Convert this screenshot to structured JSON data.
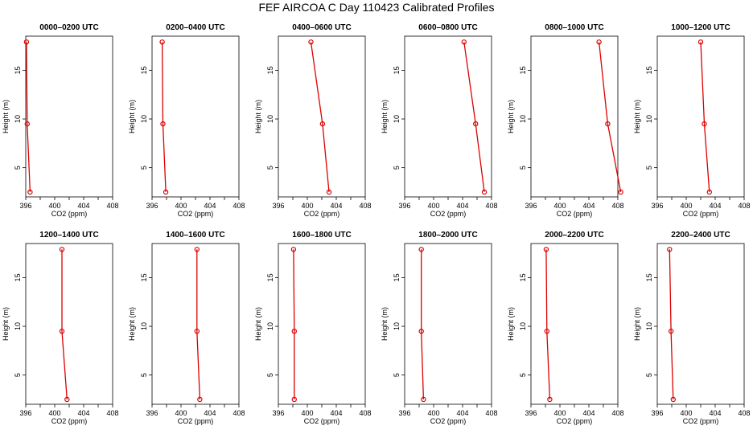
{
  "title": "FEF AIRCOA C  Day 110423  Calibrated Profiles",
  "colors": {
    "profile": "#dd0000",
    "axes": "#000000"
  },
  "chart_data": [
    {
      "type": "line",
      "title": "0000–0200 UTC",
      "xlabel": "CO2 (ppm)",
      "ylabel": "Height (m)",
      "xlim": [
        396,
        408
      ],
      "ylim": [
        2,
        18.5
      ],
      "xticks": [
        396,
        400,
        404,
        408
      ],
      "yticks": [
        5,
        10,
        15
      ],
      "grid": false,
      "series": [
        {
          "x": [
            396.6,
            396.2,
            396.1
          ],
          "y": [
            2.5,
            9.5,
            17.9
          ]
        }
      ]
    },
    {
      "type": "line",
      "title": "0200–0400 UTC",
      "xlabel": "CO2 (ppm)",
      "ylabel": "Height (m)",
      "xlim": [
        396,
        408
      ],
      "ylim": [
        2,
        18.5
      ],
      "xticks": [
        396,
        400,
        404,
        408
      ],
      "yticks": [
        5,
        10,
        15
      ],
      "grid": false,
      "series": [
        {
          "x": [
            397.9,
            397.5,
            397.4
          ],
          "y": [
            2.5,
            9.5,
            17.9
          ]
        }
      ]
    },
    {
      "type": "line",
      "title": "0400–0600 UTC",
      "xlabel": "CO2 (ppm)",
      "ylabel": "Height (m)",
      "xlim": [
        396,
        408
      ],
      "ylim": [
        2,
        18.5
      ],
      "xticks": [
        396,
        400,
        404,
        408
      ],
      "yticks": [
        5,
        10,
        15
      ],
      "grid": false,
      "series": [
        {
          "x": [
            403.0,
            402.1,
            400.5
          ],
          "y": [
            2.5,
            9.5,
            17.9
          ]
        }
      ]
    },
    {
      "type": "line",
      "title": "0600–0800 UTC",
      "xlabel": "CO2 (ppm)",
      "ylabel": "Height (m)",
      "xlim": [
        396,
        408
      ],
      "ylim": [
        2,
        18.5
      ],
      "xticks": [
        396,
        400,
        404,
        408
      ],
      "yticks": [
        5,
        10,
        15
      ],
      "grid": false,
      "series": [
        {
          "x": [
            407.0,
            405.8,
            404.2
          ],
          "y": [
            2.5,
            9.5,
            17.9
          ]
        }
      ]
    },
    {
      "type": "line",
      "title": "0800–1000 UTC",
      "xlabel": "CO2 (ppm)",
      "ylabel": "Height (m)",
      "xlim": [
        396,
        408
      ],
      "ylim": [
        2,
        18.5
      ],
      "xticks": [
        396,
        400,
        404,
        408
      ],
      "yticks": [
        5,
        10,
        15
      ],
      "grid": false,
      "series": [
        {
          "x": [
            408.4,
            406.6,
            405.4
          ],
          "y": [
            2.5,
            9.5,
            17.9
          ]
        }
      ]
    },
    {
      "type": "line",
      "title": "1000–1200 UTC",
      "xlabel": "CO2 (ppm)",
      "ylabel": "Height (m)",
      "xlim": [
        396,
        408
      ],
      "ylim": [
        2,
        18.5
      ],
      "xticks": [
        396,
        400,
        404,
        408
      ],
      "yticks": [
        5,
        10,
        15
      ],
      "grid": false,
      "series": [
        {
          "x": [
            403.2,
            402.5,
            402.0
          ],
          "y": [
            2.5,
            9.5,
            17.9
          ]
        }
      ]
    },
    {
      "type": "line",
      "title": "1200–1400 UTC",
      "xlabel": "CO2 (ppm)",
      "ylabel": "Height (m)",
      "xlim": [
        396,
        408
      ],
      "ylim": [
        2,
        18.5
      ],
      "xticks": [
        396,
        400,
        404,
        408
      ],
      "yticks": [
        5,
        10,
        15
      ],
      "grid": false,
      "series": [
        {
          "x": [
            401.7,
            401.0,
            401.0
          ],
          "y": [
            2.5,
            9.5,
            17.9
          ]
        }
      ]
    },
    {
      "type": "line",
      "title": "1400–1600 UTC",
      "xlabel": "CO2 (ppm)",
      "ylabel": "Height (m)",
      "xlim": [
        396,
        408
      ],
      "ylim": [
        2,
        18.5
      ],
      "xticks": [
        396,
        400,
        404,
        408
      ],
      "yticks": [
        5,
        10,
        15
      ],
      "grid": false,
      "series": [
        {
          "x": [
            402.6,
            402.2,
            402.2
          ],
          "y": [
            2.5,
            9.5,
            17.9
          ]
        }
      ]
    },
    {
      "type": "line",
      "title": "1600–1800 UTC",
      "xlabel": "CO2 (ppm)",
      "ylabel": "Height (m)",
      "xlim": [
        396,
        408
      ],
      "ylim": [
        2,
        18.5
      ],
      "xticks": [
        396,
        400,
        404,
        408
      ],
      "yticks": [
        5,
        10,
        15
      ],
      "grid": false,
      "series": [
        {
          "x": [
            398.2,
            398.2,
            398.1
          ],
          "y": [
            2.5,
            9.5,
            17.9
          ]
        }
      ]
    },
    {
      "type": "line",
      "title": "1800–2000 UTC",
      "xlabel": "CO2 (ppm)",
      "ylabel": "Height (m)",
      "xlim": [
        396,
        408
      ],
      "ylim": [
        2,
        18.5
      ],
      "xticks": [
        396,
        400,
        404,
        408
      ],
      "yticks": [
        5,
        10,
        15
      ],
      "grid": false,
      "series": [
        {
          "x": [
            398.6,
            398.3,
            398.3
          ],
          "y": [
            2.5,
            9.5,
            17.9
          ]
        }
      ]
    },
    {
      "type": "line",
      "title": "2000–2200 UTC",
      "xlabel": "CO2 (ppm)",
      "ylabel": "Height (m)",
      "xlim": [
        396,
        408
      ],
      "ylim": [
        2,
        18.5
      ],
      "xticks": [
        396,
        400,
        404,
        408
      ],
      "yticks": [
        5,
        10,
        15
      ],
      "grid": false,
      "series": [
        {
          "x": [
            398.6,
            398.2,
            398.1
          ],
          "y": [
            2.5,
            9.5,
            17.9
          ]
        }
      ]
    },
    {
      "type": "line",
      "title": "2200–2400 UTC",
      "xlabel": "CO2 (ppm)",
      "ylabel": "Height (m)",
      "xlim": [
        396,
        408
      ],
      "ylim": [
        2,
        18.5
      ],
      "xticks": [
        396,
        400,
        404,
        408
      ],
      "yticks": [
        5,
        10,
        15
      ],
      "grid": false,
      "series": [
        {
          "x": [
            398.2,
            397.9,
            397.7
          ],
          "y": [
            2.5,
            9.5,
            17.9
          ]
        }
      ]
    }
  ]
}
